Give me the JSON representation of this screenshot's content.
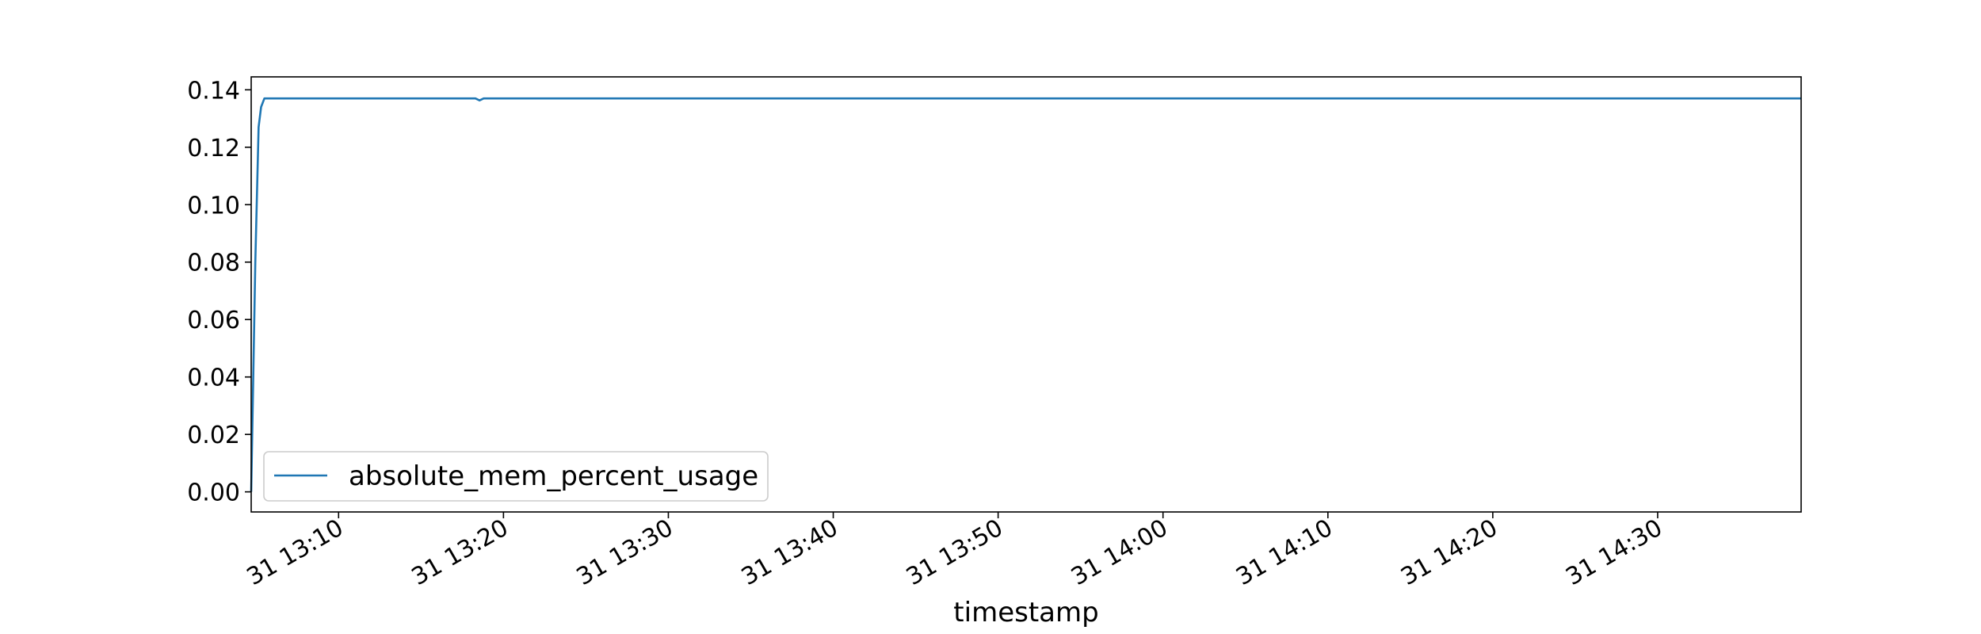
{
  "chart_data": {
    "type": "line",
    "title": "",
    "xlabel": "timestamp",
    "ylabel": "",
    "x_unit": "minutes since 13:00 on day 31",
    "xlim": [
      4.7,
      98.7
    ],
    "ylim": [
      -0.007,
      0.1445
    ],
    "grid": false,
    "legend": {
      "placement": "lower-left",
      "entries": [
        "absolute_mem_percent_usage"
      ]
    },
    "x_ticks": [
      {
        "value": 10,
        "label": "31 13:10"
      },
      {
        "value": 20,
        "label": "31 13:20"
      },
      {
        "value": 30,
        "label": "31 13:30"
      },
      {
        "value": 40,
        "label": "31 13:40"
      },
      {
        "value": 50,
        "label": "31 13:50"
      },
      {
        "value": 60,
        "label": "31 14:00"
      },
      {
        "value": 70,
        "label": "31 14:10"
      },
      {
        "value": 80,
        "label": "31 14:20"
      },
      {
        "value": 90,
        "label": "31 14:30"
      }
    ],
    "y_ticks": [
      {
        "value": 0.0,
        "label": "0.00"
      },
      {
        "value": 0.02,
        "label": "0.02"
      },
      {
        "value": 0.04,
        "label": "0.04"
      },
      {
        "value": 0.06,
        "label": "0.06"
      },
      {
        "value": 0.08,
        "label": "0.08"
      },
      {
        "value": 0.1,
        "label": "0.10"
      },
      {
        "value": 0.12,
        "label": "0.12"
      },
      {
        "value": 0.14,
        "label": "0.14"
      }
    ],
    "series": [
      {
        "name": "absolute_mem_percent_usage",
        "color": "#1f77b4",
        "x": [
          4.7,
          4.95,
          5.15,
          5.3,
          5.5,
          6.0,
          10.0,
          15.0,
          18.3,
          18.55,
          18.8,
          20.0,
          30.0,
          40.0,
          50.0,
          60.0,
          70.0,
          80.0,
          90.0,
          98.7
        ],
        "y": [
          0.0,
          0.08,
          0.127,
          0.134,
          0.137,
          0.137,
          0.137,
          0.137,
          0.137,
          0.1363,
          0.137,
          0.137,
          0.137,
          0.137,
          0.137,
          0.137,
          0.137,
          0.137,
          0.137,
          0.137
        ]
      }
    ]
  }
}
